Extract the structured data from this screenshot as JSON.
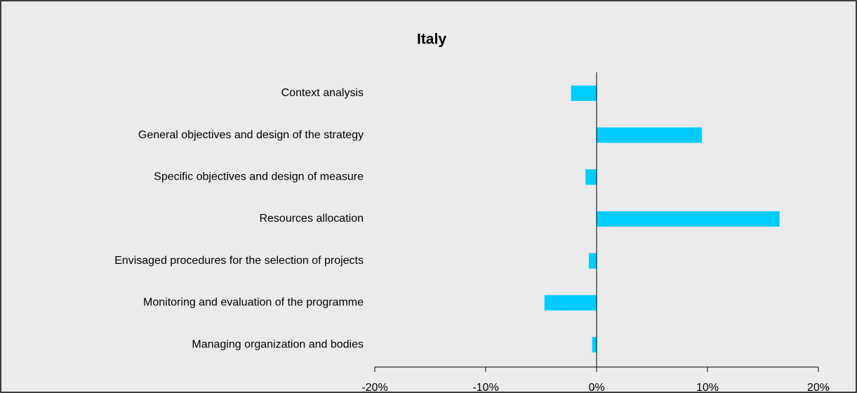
{
  "chart_data": {
    "type": "hbar",
    "title": "Italy",
    "categories": [
      "Context analysis",
      "General objectives and design of the strategy",
      "Specific objectives and design of measure",
      "Resources allocation",
      "Envisaged procedures for the selection of projects",
      "Monitoring and evaluation of the programme",
      "Managing organization and bodies"
    ],
    "values": [
      -2.3,
      9.5,
      -1.0,
      16.5,
      -0.7,
      -4.7,
      -0.4
    ],
    "color": "#00ccff",
    "xlim": [
      -20,
      20
    ],
    "xticks": [
      {
        "value": -20,
        "label": "-20%"
      },
      {
        "value": -10,
        "label": "-10%"
      },
      {
        "value": 0,
        "label": "0%"
      },
      {
        "value": 10,
        "label": "10%"
      },
      {
        "value": 20,
        "label": "20%"
      }
    ],
    "grid": false
  }
}
